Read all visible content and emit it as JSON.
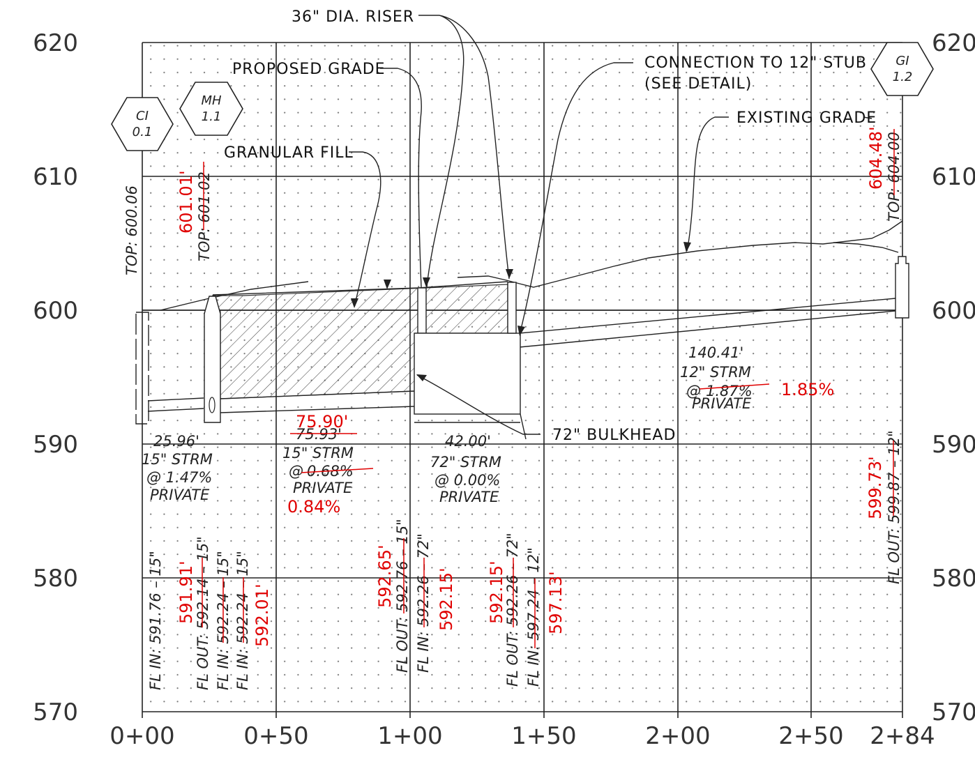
{
  "elevations": [
    "620",
    "610",
    "600",
    "590",
    "580",
    "570"
  ],
  "stations": [
    "0+00",
    "0+50",
    "1+00",
    "1+50",
    "2+00",
    "2+50",
    "2+84"
  ],
  "callouts": {
    "riser": "36\" DIA. RISER",
    "proposed_grade": "PROPOSED GRADE",
    "connection_1": "CONNECTION TO 12\" STUB",
    "connection_2": "(SEE DETAIL)",
    "existing_grade": "EXISTING GRADE",
    "granular_fill": "GRANULAR FILL",
    "bulkhead": "72\" BULKHEAD"
  },
  "structures": {
    "ci": {
      "line1": "CI",
      "line2": "0.1"
    },
    "mh": {
      "line1": "MH",
      "line2": "1.1"
    },
    "gi": {
      "line1": "GI",
      "line2": "1.2"
    }
  },
  "tops": {
    "ci_top": "TOP: 600.06",
    "mh_top_old": "TOP: 601.02",
    "mh_top_new": "601.01'",
    "gi_top_old": "TOP: 604.00",
    "gi_top_new": "604.48'"
  },
  "pipes": {
    "p1": {
      "length": "25.96'",
      "size": "15\" STRM",
      "slope": "@ 1.47%",
      "owner": "PRIVATE"
    },
    "p2": {
      "length_new": "75.90'",
      "length_old": "75.93'",
      "size": "15\" STRM",
      "slope_prefix": "@",
      "slope_old": "0.68%",
      "owner": "PRIVATE",
      "slope_new": "0.84%"
    },
    "p3": {
      "length": "42.00'",
      "size": "72\" STRM",
      "slope": "@ 0.00%",
      "owner": "PRIVATE"
    },
    "p4": {
      "length": "140.41'",
      "size": "12\" STRM",
      "slope_prefix": "@",
      "slope_old": "1.87%",
      "owner": "PRIVATE",
      "slope_new": "1.85%"
    }
  },
  "inverts": {
    "ci_in": "FL IN: 591.76 – 15\"",
    "mh_out": "FL OUT: 592.14 – 15\"",
    "mh_out_old": "592.14",
    "mh_out_new": "591.91'",
    "mh_in1": "FL IN: 592.24 – 15\"",
    "mh_in1_old": "592.24",
    "mh_in2": "FL IN: 592.24 – 15\"",
    "mh_in2_old": "592.24",
    "mh_in_new": "592.01'",
    "b1_out": "FL OUT: 592.76 – 15\"",
    "b1_out_old": "592.76",
    "b1_out_new": "592.65'",
    "b1_in": "FL IN: 592.26 – 72\"",
    "b1_in_old": "592.26",
    "b1_in_new": "592.15'",
    "b2_out": "FL OUT: 592.26 – 72\"",
    "b2_out_old": "592.26",
    "b2_out_new": "592.15'",
    "b2_in": "FL IN: 597.24 – 12\"",
    "b2_in_old": "597.24",
    "b2_in_new": "597.13'",
    "gi_out": "FL OUT: 599.87 – 12\"",
    "gi_out_old": "599.87",
    "gi_out_new": "599.73'"
  }
}
